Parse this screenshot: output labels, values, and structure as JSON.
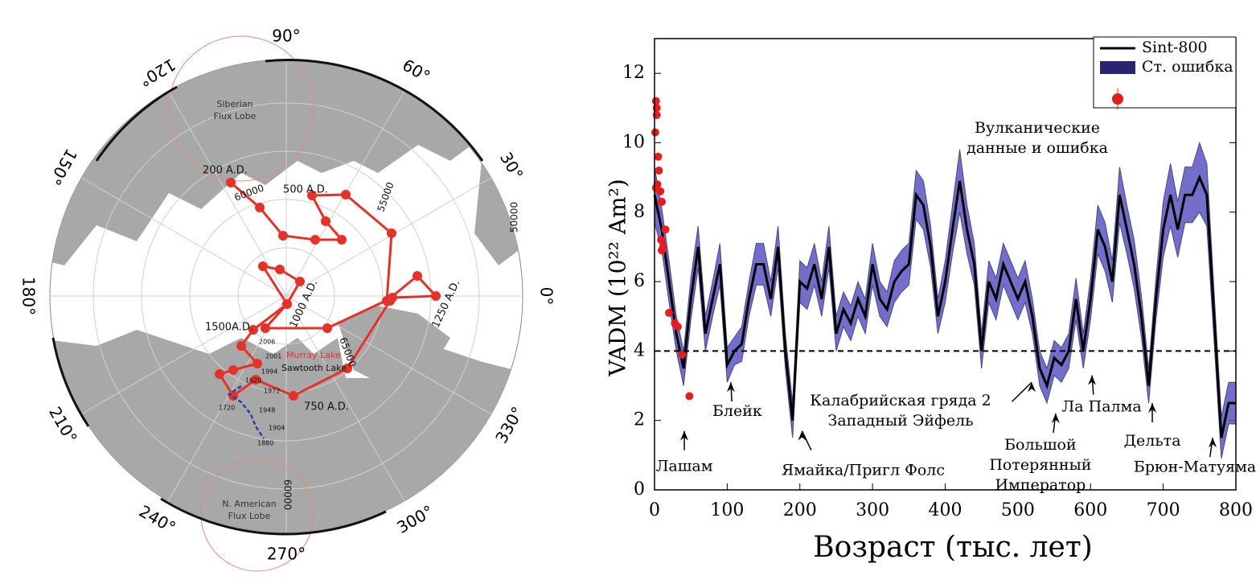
{
  "map": {
    "degree_labels": [
      "90°",
      "60°",
      "30°",
      "0°",
      "330°",
      "300°",
      "270°",
      "240°",
      "210°",
      "180°",
      "150°",
      "120°"
    ],
    "region_labels": [
      [
        "Siberian",
        "Flux Lobe"
      ],
      [
        "N. American",
        "Flux Lobe"
      ]
    ],
    "epoch_labels": [
      "200 A.D.",
      "500 A.D.",
      "1000 A.D.",
      "1250 A.D.",
      "1500A.D.",
      "750 A.D."
    ],
    "lake_labels": [
      "Murray Lake",
      "Sawtooth Lake"
    ],
    "contour_labels": [
      "60000",
      "55000",
      "50000",
      "65000",
      "60000"
    ],
    "year_labels": [
      "2006",
      "2001",
      "1994",
      "1972",
      "1948",
      "1904",
      "1880",
      "1620",
      "1720"
    ]
  },
  "chart_data": {
    "type": "line",
    "xlabel": "Возраст (тыс. лет)",
    "ylabel": "VADM (10²² Am²)",
    "xlim": [
      0,
      800
    ],
    "ylim": [
      0,
      13
    ],
    "xticks": [
      0,
      100,
      200,
      300,
      400,
      500,
      600,
      700,
      800
    ],
    "yticks": [
      0,
      2,
      4,
      6,
      8,
      10,
      12
    ],
    "reference_line": 4,
    "x": [
      0,
      10,
      20,
      30,
      40,
      50,
      60,
      70,
      80,
      90,
      100,
      110,
      120,
      130,
      140,
      150,
      160,
      170,
      180,
      190,
      200,
      210,
      220,
      230,
      240,
      250,
      260,
      270,
      280,
      290,
      300,
      310,
      320,
      330,
      340,
      350,
      360,
      370,
      380,
      390,
      400,
      410,
      420,
      430,
      440,
      450,
      460,
      470,
      480,
      490,
      500,
      510,
      520,
      530,
      540,
      550,
      560,
      570,
      580,
      590,
      600,
      610,
      620,
      630,
      640,
      650,
      660,
      670,
      680,
      690,
      700,
      710,
      720,
      730,
      740,
      750,
      760,
      770,
      780,
      790,
      800
    ],
    "series": [
      {
        "name": "Sint-800",
        "color": "#000000",
        "style": "line",
        "values": [
          8.5,
          7.5,
          6.0,
          4.5,
          3.5,
          5.5,
          7.0,
          4.5,
          5.5,
          6.5,
          3.6,
          4.0,
          4.2,
          5.5,
          6.5,
          6.5,
          5.5,
          7.0,
          4.0,
          2.0,
          6.0,
          5.8,
          6.5,
          5.5,
          7.0,
          4.5,
          5.2,
          4.8,
          5.5,
          5.0,
          6.5,
          5.5,
          5.2,
          6.0,
          6.3,
          6.5,
          8.5,
          8.2,
          7.0,
          5.0,
          6.0,
          7.5,
          8.9,
          7.5,
          6.5,
          4.0,
          6.0,
          5.5,
          6.5,
          6.0,
          5.5,
          6.0,
          5.0,
          3.5,
          3.0,
          3.8,
          3.6,
          4.0,
          5.5,
          4.0,
          5.5,
          7.5,
          7.0,
          6.0,
          8.5,
          7.5,
          6.5,
          5.0,
          3.0,
          5.5,
          7.5,
          8.5,
          7.5,
          8.5,
          8.5,
          9.0,
          8.5,
          5.0,
          1.5,
          2.5,
          2.5
        ]
      },
      {
        "name": "Ст. ошибка",
        "color": "#2a2470",
        "style": "band",
        "values": [
          0.8,
          0.6,
          0.6,
          0.5,
          0.5,
          0.6,
          0.6,
          0.5,
          0.5,
          0.6,
          0.5,
          0.4,
          0.5,
          0.5,
          0.6,
          0.6,
          0.5,
          0.6,
          0.5,
          0.5,
          0.6,
          0.6,
          0.6,
          0.5,
          0.6,
          0.5,
          0.5,
          0.5,
          0.5,
          0.5,
          0.6,
          0.5,
          0.5,
          0.6,
          0.6,
          0.6,
          0.7,
          0.7,
          0.6,
          0.5,
          0.6,
          0.7,
          0.9,
          0.7,
          0.6,
          0.5,
          0.6,
          0.6,
          0.6,
          0.6,
          0.6,
          0.6,
          0.5,
          0.5,
          0.5,
          0.5,
          0.5,
          0.5,
          0.6,
          0.5,
          0.6,
          0.7,
          0.7,
          0.6,
          0.8,
          0.7,
          0.7,
          0.6,
          0.5,
          0.6,
          0.8,
          0.9,
          0.8,
          0.8,
          0.8,
          1.0,
          0.9,
          0.7,
          0.6,
          0.6,
          0.6
        ]
      },
      {
        "color": "#e41e1e",
        "style": "points",
        "x": [
          2,
          3,
          3,
          1,
          5,
          6,
          4,
          2,
          8,
          10,
          9,
          12,
          15,
          10,
          20,
          28,
          32,
          38,
          48
        ],
        "values": [
          11.2,
          11.0,
          10.8,
          10.3,
          9.6,
          9.2,
          8.8,
          8.7,
          8.6,
          8.3,
          7.2,
          7.0,
          7.5,
          6.9,
          5.1,
          4.8,
          4.7,
          3.9,
          2.7
        ]
      }
    ],
    "annotations": [
      {
        "text": [
          "Вулканические",
          "данные и ошибка"
        ]
      },
      {
        "text": [
          "Лашам"
        ],
        "x": 41,
        "y": 1.7
      },
      {
        "text": [
          "Блейк"
        ],
        "x": 105,
        "y": 3.1
      },
      {
        "text": [
          "Ямайка/Пригл Фолс"
        ],
        "x": 203,
        "y": 1.7
      },
      {
        "text": [
          "Калабрийская гряда 2",
          "Западный Эйфель"
        ],
        "x": 519,
        "y": 3.1
      },
      {
        "text": [
          "Большой",
          "Потерянный",
          "Император"
        ],
        "x": 552,
        "y": 2.2
      },
      {
        "text": [
          "Ла Палма"
        ],
        "x": 602,
        "y": 3.3
      },
      {
        "text": [
          "Дельта"
        ],
        "x": 685,
        "y": 2.5
      },
      {
        "text": [
          "Брюн-Матуяма"
        ],
        "x": 768,
        "y": 1.5
      }
    ]
  }
}
